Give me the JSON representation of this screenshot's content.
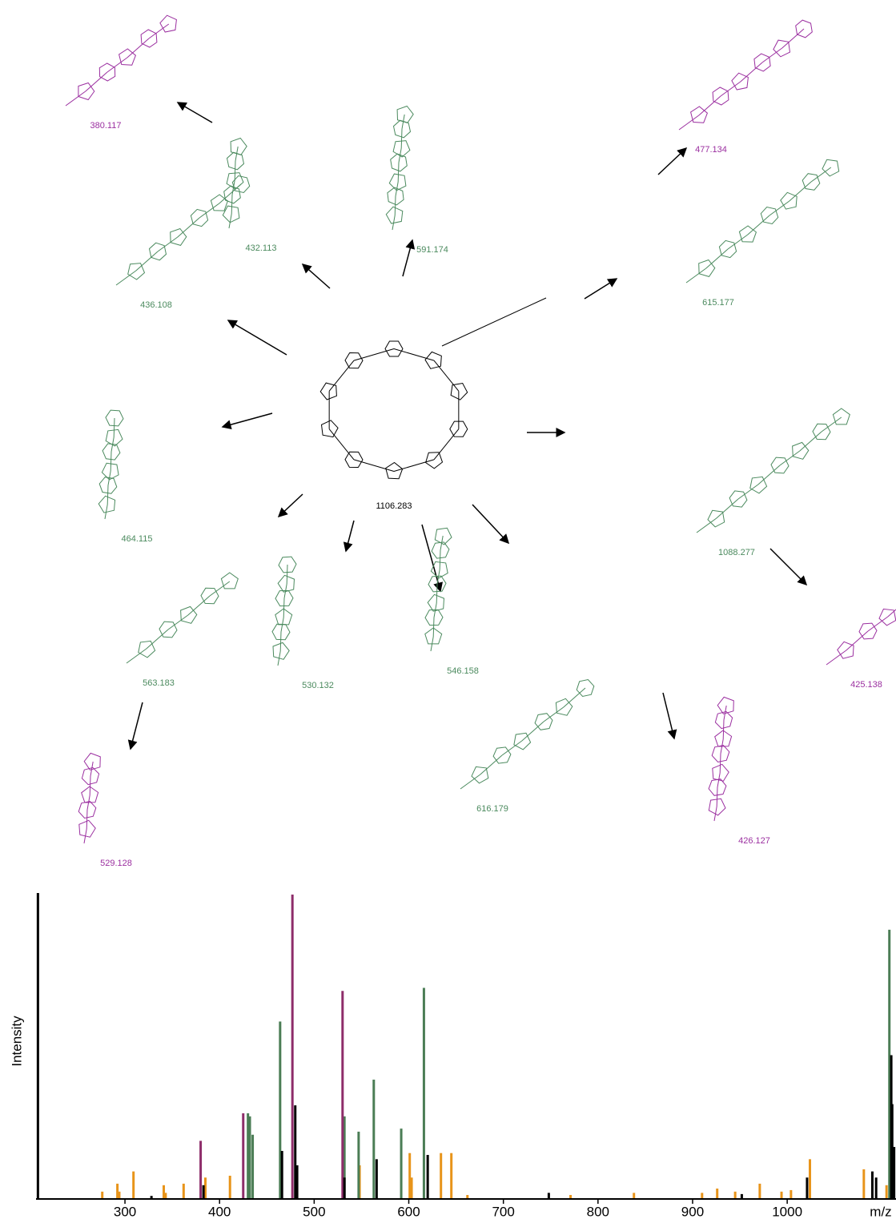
{
  "fragments": [
    {
      "label": "380.117",
      "color": "#9b2fa0"
    },
    {
      "label": "477.134",
      "color": "#9b2fa0"
    },
    {
      "label": "591.174",
      "color": "#4b8a5e"
    },
    {
      "label": "432.113",
      "color": "#4b8a5e"
    },
    {
      "label": "436.108",
      "color": "#4b8a5e"
    },
    {
      "label": "615.177",
      "color": "#4b8a5e"
    },
    {
      "label": "1106.283",
      "color": "#000000"
    },
    {
      "label": "464.115",
      "color": "#4b8a5e"
    },
    {
      "label": "1088.277",
      "color": "#4b8a5e"
    },
    {
      "label": "563.183",
      "color": "#4b8a5e"
    },
    {
      "label": "530.132",
      "color": "#4b8a5e"
    },
    {
      "label": "546.158",
      "color": "#4b8a5e"
    },
    {
      "label": "425.138",
      "color": "#9b2fa0"
    },
    {
      "label": "616.179",
      "color": "#4b8a5e"
    },
    {
      "label": "426.127",
      "color": "#9b2fa0"
    },
    {
      "label": "529.128",
      "color": "#9b2fa0"
    }
  ],
  "chart_data": {
    "type": "bar",
    "x_label": "m/z",
    "y_label": "Intensity",
    "xlim": [
      206,
      1115
    ],
    "ylim": [
      0,
      100
    ],
    "xticks": [
      300,
      400,
      500,
      600,
      700,
      800,
      900,
      1000
    ],
    "series": [
      {
        "color": "#e8941a",
        "x": [
          276,
          292,
          294,
          309,
          341,
          343,
          362,
          385,
          411,
          548,
          601,
          603,
          634,
          645,
          662,
          771,
          838,
          910,
          926,
          945,
          971,
          994,
          1004,
          1024,
          1081,
          1105
        ],
        "values": [
          2.4,
          5,
          2.4,
          9,
          4.5,
          2,
          5,
          7,
          7.6,
          11,
          15,
          7,
          15,
          15,
          1.3,
          1.3,
          2,
          2,
          3.4,
          2.4,
          5,
          2.4,
          2.9,
          13,
          9.7,
          4.5
        ]
      },
      {
        "color": "#4b7d55",
        "x": [
          430,
          432,
          435,
          464,
          532,
          547,
          563,
          592,
          616,
          1108
        ],
        "values": [
          28,
          27,
          21,
          58,
          27,
          22,
          39,
          23,
          69,
          88
        ]
      },
      {
        "color": "#8e2d6a",
        "x": [
          380,
          425,
          477,
          530
        ],
        "values": [
          19,
          28,
          99.5,
          68
        ]
      },
      {
        "color": "#000000",
        "x": [
          208,
          328,
          383,
          466,
          480,
          482,
          532,
          566,
          620,
          748,
          952,
          1021,
          1090,
          1094,
          1110,
          1111,
          1113
        ],
        "values": [
          100,
          1,
          4.5,
          15.7,
          30.6,
          11,
          7,
          13,
          14.4,
          2,
          1.6,
          7,
          9,
          7,
          47,
          31,
          17
        ]
      }
    ]
  }
}
